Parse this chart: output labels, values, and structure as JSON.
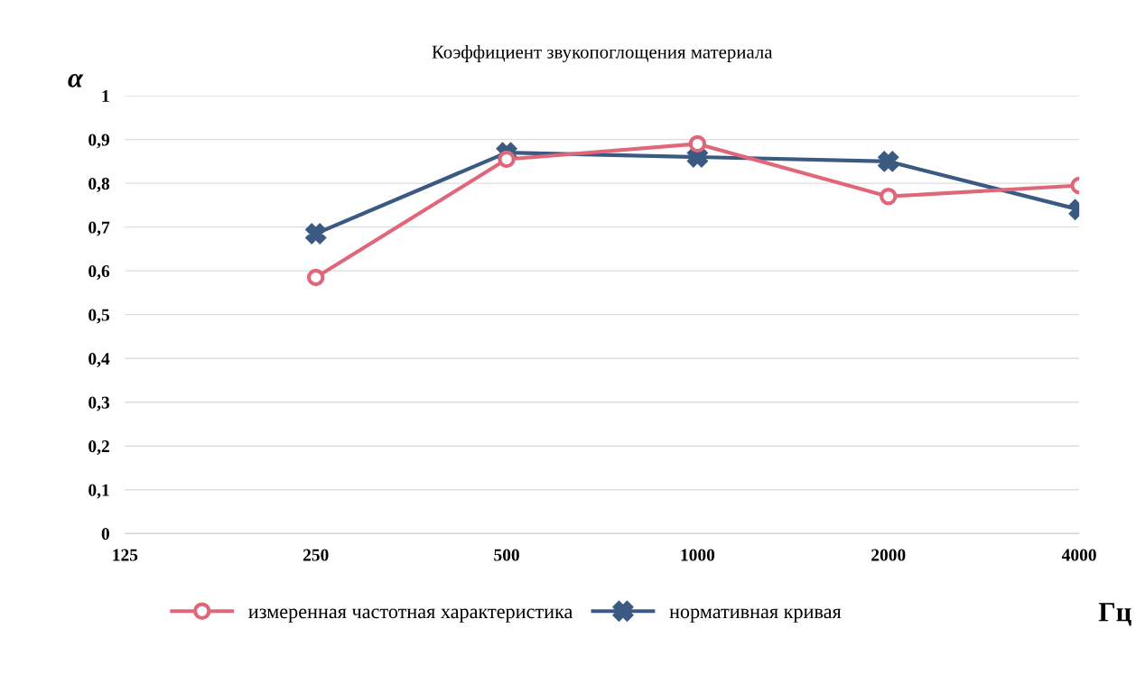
{
  "chart_data": {
    "type": "line",
    "title": "Коэффициент звукопоглощения материала",
    "categories": [
      "125",
      "250",
      "500",
      "1000",
      "2000",
      "4000"
    ],
    "series": [
      {
        "name": "измеренная частотная характеристика",
        "color": "#e0677a",
        "marker": "circle",
        "values": [
          null,
          0.585,
          0.855,
          0.89,
          0.77,
          0.795
        ]
      },
      {
        "name": "нормативная кривая",
        "color": "#3b5a82",
        "marker": "cross",
        "values": [
          null,
          0.685,
          0.87,
          0.86,
          0.85,
          0.74
        ]
      }
    ],
    "ylabel": "α",
    "xlabel": "Гц",
    "ylim": [
      0,
      1
    ],
    "yticks": [
      0,
      {
        "value": 0.1,
        "label": "0,1"
      },
      {
        "value": 0.2,
        "label": "0,2"
      },
      {
        "value": 0.3,
        "label": "0,3"
      },
      {
        "value": 0.4,
        "label": "0,4"
      },
      {
        "value": 0.5,
        "label": "0,5"
      },
      {
        "value": 0.6,
        "label": "0,6"
      },
      {
        "value": 0.7,
        "label": "0,7"
      },
      {
        "value": 0.8,
        "label": "0,8"
      },
      {
        "value": 0.9,
        "label": "0,9"
      },
      1
    ],
    "grid": "y",
    "legend": "bottom"
  }
}
